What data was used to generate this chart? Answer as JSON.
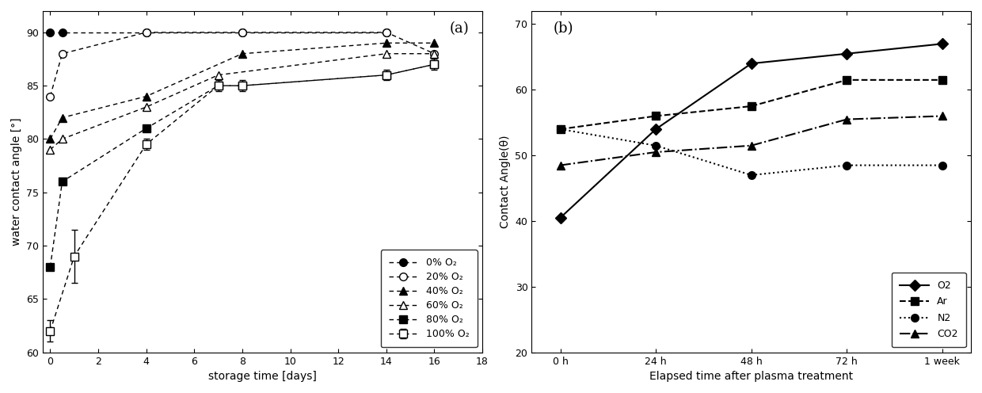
{
  "plot_a": {
    "xlabel": "storage time [days]",
    "ylabel": "water contact angle [°]",
    "label_a": "(a)",
    "xlim": [
      -0.3,
      18
    ],
    "ylim": [
      60,
      92
    ],
    "yticks": [
      60,
      65,
      70,
      75,
      80,
      85,
      90
    ],
    "xticks": [
      0,
      2,
      4,
      6,
      8,
      10,
      12,
      14,
      16,
      18
    ],
    "series": [
      {
        "label": "0% O₂",
        "x": [
          0,
          0.5,
          4,
          8,
          14
        ],
        "y": [
          90,
          90,
          90,
          90,
          90
        ],
        "marker": "o",
        "fillstyle": "full",
        "color": "black",
        "linestyle": "--",
        "yerr": null,
        "yerr_x": null
      },
      {
        "label": "20% O₂",
        "x": [
          0,
          0.5,
          4,
          8,
          14,
          16
        ],
        "y": [
          84,
          88,
          90,
          90,
          90,
          88
        ],
        "marker": "o",
        "fillstyle": "none",
        "color": "black",
        "linestyle": "--",
        "yerr": null,
        "yerr_x": null
      },
      {
        "label": "40% O₂",
        "x": [
          0,
          0.5,
          4,
          8,
          14,
          16
        ],
        "y": [
          80,
          82,
          84,
          88,
          89,
          89
        ],
        "marker": "^",
        "fillstyle": "full",
        "color": "black",
        "linestyle": "--",
        "yerr": null,
        "yerr_x": null
      },
      {
        "label": "60% O₂",
        "x": [
          0,
          0.5,
          4,
          7,
          14,
          16
        ],
        "y": [
          79,
          80,
          83,
          86,
          88,
          88
        ],
        "marker": "^",
        "fillstyle": "none",
        "color": "black",
        "linestyle": "--",
        "yerr": null,
        "yerr_x": null
      },
      {
        "label": "80% O₂",
        "x": [
          0,
          0.5,
          4,
          7,
          8,
          14,
          16
        ],
        "y": [
          68,
          76,
          81,
          85,
          85,
          86,
          87
        ],
        "marker": "s",
        "fillstyle": "full",
        "color": "black",
        "linestyle": "--",
        "yerr": null,
        "yerr_x": null
      },
      {
        "label": "100% O₂",
        "x": [
          0,
          1,
          4,
          7,
          8,
          14,
          16
        ],
        "y": [
          62,
          69,
          79.5,
          85,
          85,
          86,
          87
        ],
        "marker": "s",
        "fillstyle": "none",
        "color": "black",
        "linestyle": "--",
        "yerr": [
          1.0,
          2.5,
          0.5,
          0.5,
          0.5,
          0.5,
          0.5
        ],
        "yerr_x": [
          0,
          1,
          4,
          7,
          8,
          14,
          16
        ]
      }
    ],
    "extra_errorbar": {
      "x": [
        0
      ],
      "y": [
        62
      ],
      "yerr": [
        1.0
      ]
    }
  },
  "plot_b": {
    "xlabel": "Elapsed time after plasma treatment",
    "ylabel": "Contact Angle(θ)",
    "label_b": "(b)",
    "xlabels": [
      "0 h",
      "24 h",
      "48 h",
      "72 h",
      "1 week"
    ],
    "xlim": [
      -0.3,
      4.3
    ],
    "ylim": [
      20,
      72
    ],
    "yticks": [
      20,
      30,
      40,
      50,
      60,
      70
    ],
    "series": [
      {
        "label": "O2",
        "x": [
          0,
          1,
          2,
          3,
          4
        ],
        "y": [
          40.5,
          54.0,
          64.0,
          65.5,
          67.0
        ],
        "marker": "D",
        "fillstyle": "full",
        "color": "black",
        "linestyle": "-",
        "markersize": 7
      },
      {
        "label": "Ar",
        "x": [
          0,
          1,
          2,
          3,
          4
        ],
        "y": [
          54.0,
          56.0,
          57.5,
          61.5,
          61.5
        ],
        "marker": "s",
        "fillstyle": "full",
        "color": "black",
        "linestyle": "--",
        "markersize": 7
      },
      {
        "label": "N2",
        "x": [
          0,
          1,
          2,
          3,
          4
        ],
        "y": [
          54.0,
          51.5,
          47.0,
          48.5,
          48.5
        ],
        "marker": "o",
        "fillstyle": "full",
        "color": "black",
        "linestyle": ":",
        "markersize": 7
      },
      {
        "label": "CO2",
        "x": [
          0,
          1,
          2,
          3,
          4
        ],
        "y": [
          48.5,
          50.5,
          51.5,
          55.5,
          56.0
        ],
        "marker": "^",
        "fillstyle": "full",
        "color": "black",
        "linestyle": "-.",
        "markersize": 7
      }
    ]
  }
}
